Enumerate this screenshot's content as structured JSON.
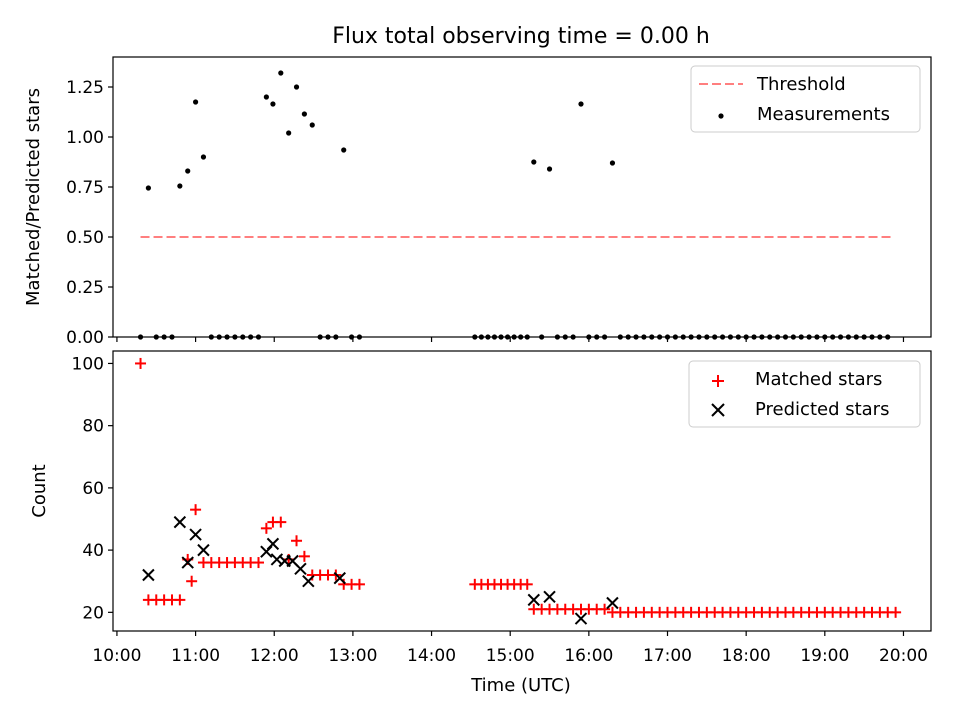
{
  "title": "Flux total observing time = 0.00 h",
  "colors": {
    "threshold": "#ff7f7f",
    "measurement": "#000000",
    "matched": "#ff0000",
    "predicted": "#000000"
  },
  "chart_data": [
    {
      "type": "scatter",
      "title": "Flux total observing time = 0.00 h",
      "xlabel": "",
      "ylabel": "Matched/Predicted stars",
      "xlim_hours": [
        9.95,
        20.35
      ],
      "ylim": [
        0,
        1.4
      ],
      "yticks": [
        0.0,
        0.25,
        0.5,
        0.75,
        1.0,
        1.25
      ],
      "ytick_labels": [
        "0.00",
        "0.25",
        "0.50",
        "0.75",
        "1.00",
        "1.25"
      ],
      "legend_position": "top-right",
      "legend": [
        {
          "name": "Threshold",
          "style": "dashed-line"
        },
        {
          "name": "Measurements",
          "style": "dot"
        }
      ],
      "threshold": {
        "value": 0.5,
        "x_from": "10:18",
        "x_to": "19:51"
      },
      "measurements": [
        {
          "t": "10:18",
          "v": 0
        },
        {
          "t": "10:24",
          "v": 0.745
        },
        {
          "t": "10:30",
          "v": 0
        },
        {
          "t": "10:36",
          "v": 0
        },
        {
          "t": "10:42",
          "v": 0
        },
        {
          "t": "10:48",
          "v": 0.755
        },
        {
          "t": "10:54",
          "v": 0.83
        },
        {
          "t": "11:00",
          "v": 1.175
        },
        {
          "t": "11:06",
          "v": 0.9
        },
        {
          "t": "11:12",
          "v": 0
        },
        {
          "t": "11:18",
          "v": 0
        },
        {
          "t": "11:24",
          "v": 0
        },
        {
          "t": "11:30",
          "v": 0
        },
        {
          "t": "11:36",
          "v": 0
        },
        {
          "t": "11:42",
          "v": 0
        },
        {
          "t": "11:48",
          "v": 0
        },
        {
          "t": "11:54",
          "v": 1.2
        },
        {
          "t": "11:59",
          "v": 1.165
        },
        {
          "t": "12:05",
          "v": 1.32
        },
        {
          "t": "12:11",
          "v": 1.02
        },
        {
          "t": "12:17",
          "v": 1.25
        },
        {
          "t": "12:23",
          "v": 1.115
        },
        {
          "t": "12:29",
          "v": 1.06
        },
        {
          "t": "12:35",
          "v": 0
        },
        {
          "t": "12:41",
          "v": 0
        },
        {
          "t": "12:47",
          "v": 0
        },
        {
          "t": "12:53",
          "v": 0.935
        },
        {
          "t": "12:59",
          "v": 0
        },
        {
          "t": "13:05",
          "v": 0
        },
        {
          "t": "14:33",
          "v": 0
        },
        {
          "t": "14:38",
          "v": 0
        },
        {
          "t": "14:43",
          "v": 0
        },
        {
          "t": "14:48",
          "v": 0
        },
        {
          "t": "14:53",
          "v": 0
        },
        {
          "t": "14:58",
          "v": 0
        },
        {
          "t": "15:03",
          "v": 0
        },
        {
          "t": "15:08",
          "v": 0
        },
        {
          "t": "15:13",
          "v": 0
        },
        {
          "t": "15:18",
          "v": 0.875
        },
        {
          "t": "15:24",
          "v": 0
        },
        {
          "t": "15:30",
          "v": 0.84
        },
        {
          "t": "15:36",
          "v": 0
        },
        {
          "t": "15:42",
          "v": 0
        },
        {
          "t": "15:48",
          "v": 0
        },
        {
          "t": "15:54",
          "v": 1.165
        },
        {
          "t": "16:00",
          "v": 0
        },
        {
          "t": "16:06",
          "v": 0
        },
        {
          "t": "16:12",
          "v": 0
        },
        {
          "t": "16:18",
          "v": 0.87
        },
        {
          "t": "16:24",
          "v": 0
        },
        {
          "t": "16:30",
          "v": 0
        },
        {
          "t": "16:36",
          "v": 0
        },
        {
          "t": "16:42",
          "v": 0
        },
        {
          "t": "16:48",
          "v": 0
        },
        {
          "t": "16:54",
          "v": 0
        },
        {
          "t": "17:00",
          "v": 0
        },
        {
          "t": "17:06",
          "v": 0
        },
        {
          "t": "17:12",
          "v": 0
        },
        {
          "t": "17:18",
          "v": 0
        },
        {
          "t": "17:24",
          "v": 0
        },
        {
          "t": "17:30",
          "v": 0
        },
        {
          "t": "17:36",
          "v": 0
        },
        {
          "t": "17:42",
          "v": 0
        },
        {
          "t": "17:48",
          "v": 0
        },
        {
          "t": "17:54",
          "v": 0
        },
        {
          "t": "18:00",
          "v": 0
        },
        {
          "t": "18:06",
          "v": 0
        },
        {
          "t": "18:12",
          "v": 0
        },
        {
          "t": "18:18",
          "v": 0
        },
        {
          "t": "18:24",
          "v": 0
        },
        {
          "t": "18:30",
          "v": 0
        },
        {
          "t": "18:36",
          "v": 0
        },
        {
          "t": "18:42",
          "v": 0
        },
        {
          "t": "18:48",
          "v": 0
        },
        {
          "t": "18:54",
          "v": 0
        },
        {
          "t": "19:00",
          "v": 0
        },
        {
          "t": "19:06",
          "v": 0
        },
        {
          "t": "19:12",
          "v": 0
        },
        {
          "t": "19:18",
          "v": 0
        },
        {
          "t": "19:24",
          "v": 0
        },
        {
          "t": "19:30",
          "v": 0
        },
        {
          "t": "19:36",
          "v": 0
        },
        {
          "t": "19:42",
          "v": 0
        },
        {
          "t": "19:48",
          "v": 0
        }
      ]
    },
    {
      "type": "scatter",
      "xlabel": "Time (UTC)",
      "ylabel": "Count",
      "xlim_hours": [
        9.95,
        20.35
      ],
      "ylim": [
        14,
        104
      ],
      "yticks": [
        20,
        40,
        60,
        80,
        100
      ],
      "ytick_labels": [
        "20",
        "40",
        "60",
        "80",
        "100"
      ],
      "xtick_labels": [
        "10:00",
        "11:00",
        "12:00",
        "13:00",
        "14:00",
        "15:00",
        "16:00",
        "17:00",
        "18:00",
        "19:00",
        "20:00"
      ],
      "legend_position": "top-right",
      "legend": [
        {
          "name": "Matched stars",
          "style": "plus"
        },
        {
          "name": "Predicted stars",
          "style": "x"
        }
      ],
      "matched": [
        {
          "t": "10:18",
          "v": 100
        },
        {
          "t": "10:24",
          "v": 24
        },
        {
          "t": "10:30",
          "v": 24
        },
        {
          "t": "10:36",
          "v": 24
        },
        {
          "t": "10:42",
          "v": 24
        },
        {
          "t": "10:48",
          "v": 24
        },
        {
          "t": "10:54",
          "v": 37
        },
        {
          "t": "10:57",
          "v": 30
        },
        {
          "t": "11:00",
          "v": 53
        },
        {
          "t": "11:06",
          "v": 36
        },
        {
          "t": "11:12",
          "v": 36
        },
        {
          "t": "11:18",
          "v": 36
        },
        {
          "t": "11:24",
          "v": 36
        },
        {
          "t": "11:30",
          "v": 36
        },
        {
          "t": "11:36",
          "v": 36
        },
        {
          "t": "11:42",
          "v": 36
        },
        {
          "t": "11:48",
          "v": 36
        },
        {
          "t": "11:54",
          "v": 47
        },
        {
          "t": "11:59",
          "v": 49
        },
        {
          "t": "12:05",
          "v": 49
        },
        {
          "t": "12:11",
          "v": 37
        },
        {
          "t": "12:17",
          "v": 43
        },
        {
          "t": "12:23",
          "v": 38
        },
        {
          "t": "12:29",
          "v": 32
        },
        {
          "t": "12:35",
          "v": 32
        },
        {
          "t": "12:41",
          "v": 32
        },
        {
          "t": "12:47",
          "v": 32
        },
        {
          "t": "12:53",
          "v": 29
        },
        {
          "t": "12:59",
          "v": 29
        },
        {
          "t": "13:05",
          "v": 29
        },
        {
          "t": "14:33",
          "v": 29
        },
        {
          "t": "14:38",
          "v": 29
        },
        {
          "t": "14:43",
          "v": 29
        },
        {
          "t": "14:48",
          "v": 29
        },
        {
          "t": "14:53",
          "v": 29
        },
        {
          "t": "14:58",
          "v": 29
        },
        {
          "t": "15:03",
          "v": 29
        },
        {
          "t": "15:08",
          "v": 29
        },
        {
          "t": "15:13",
          "v": 29
        },
        {
          "t": "15:18",
          "v": 21
        },
        {
          "t": "15:24",
          "v": 21
        },
        {
          "t": "15:30",
          "v": 21
        },
        {
          "t": "15:36",
          "v": 21
        },
        {
          "t": "15:42",
          "v": 21
        },
        {
          "t": "15:48",
          "v": 21
        },
        {
          "t": "15:54",
          "v": 21
        },
        {
          "t": "16:00",
          "v": 21
        },
        {
          "t": "16:06",
          "v": 21
        },
        {
          "t": "16:12",
          "v": 21
        },
        {
          "t": "16:18",
          "v": 20
        },
        {
          "t": "16:24",
          "v": 20
        },
        {
          "t": "16:30",
          "v": 20
        },
        {
          "t": "16:36",
          "v": 20
        },
        {
          "t": "16:42",
          "v": 20
        },
        {
          "t": "16:48",
          "v": 20
        },
        {
          "t": "16:54",
          "v": 20
        },
        {
          "t": "17:00",
          "v": 20
        },
        {
          "t": "17:06",
          "v": 20
        },
        {
          "t": "17:12",
          "v": 20
        },
        {
          "t": "17:18",
          "v": 20
        },
        {
          "t": "17:24",
          "v": 20
        },
        {
          "t": "17:30",
          "v": 20
        },
        {
          "t": "17:36",
          "v": 20
        },
        {
          "t": "17:42",
          "v": 20
        },
        {
          "t": "17:48",
          "v": 20
        },
        {
          "t": "17:54",
          "v": 20
        },
        {
          "t": "18:00",
          "v": 20
        },
        {
          "t": "18:06",
          "v": 20
        },
        {
          "t": "18:12",
          "v": 20
        },
        {
          "t": "18:18",
          "v": 20
        },
        {
          "t": "18:24",
          "v": 20
        },
        {
          "t": "18:30",
          "v": 20
        },
        {
          "t": "18:36",
          "v": 20
        },
        {
          "t": "18:42",
          "v": 20
        },
        {
          "t": "18:48",
          "v": 20
        },
        {
          "t": "18:54",
          "v": 20
        },
        {
          "t": "19:00",
          "v": 20
        },
        {
          "t": "19:06",
          "v": 20
        },
        {
          "t": "19:12",
          "v": 20
        },
        {
          "t": "19:18",
          "v": 20
        },
        {
          "t": "19:24",
          "v": 20
        },
        {
          "t": "19:30",
          "v": 20
        },
        {
          "t": "19:36",
          "v": 20
        },
        {
          "t": "19:42",
          "v": 20
        },
        {
          "t": "19:48",
          "v": 20
        },
        {
          "t": "19:54",
          "v": 20
        }
      ],
      "predicted": [
        {
          "t": "10:24",
          "v": 32
        },
        {
          "t": "10:48",
          "v": 49
        },
        {
          "t": "10:54",
          "v": 36
        },
        {
          "t": "11:00",
          "v": 45
        },
        {
          "t": "11:06",
          "v": 40
        },
        {
          "t": "11:54",
          "v": 39.5
        },
        {
          "t": "11:59",
          "v": 42
        },
        {
          "t": "12:02",
          "v": 37
        },
        {
          "t": "12:08",
          "v": 36.5
        },
        {
          "t": "12:14",
          "v": 36.5
        },
        {
          "t": "12:20",
          "v": 34
        },
        {
          "t": "12:26",
          "v": 30
        },
        {
          "t": "12:50",
          "v": 31
        },
        {
          "t": "15:18",
          "v": 24
        },
        {
          "t": "15:30",
          "v": 25
        },
        {
          "t": "15:54",
          "v": 18
        },
        {
          "t": "16:18",
          "v": 23
        }
      ]
    }
  ]
}
